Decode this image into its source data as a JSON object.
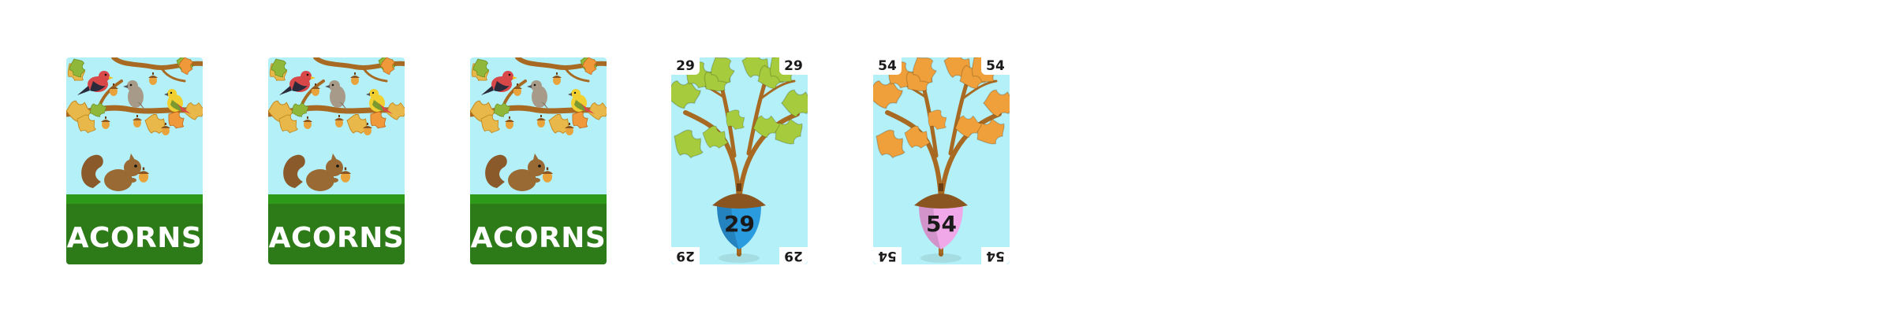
{
  "card_backs": [
    {
      "label": "ACORNS"
    },
    {
      "label": "ACORNS"
    },
    {
      "label": "ACORNS"
    }
  ],
  "number_cards": [
    {
      "value": "29",
      "leaf_color": "#a6cc3d",
      "acorn_color": "#2b9be0"
    },
    {
      "value": "54",
      "leaf_color": "#f0a03a",
      "acorn_color": "#f0a8e8"
    }
  ],
  "colors": {
    "sky": "#b3f0f7",
    "grass": "#2d7a18",
    "branch": "#a86a22"
  }
}
